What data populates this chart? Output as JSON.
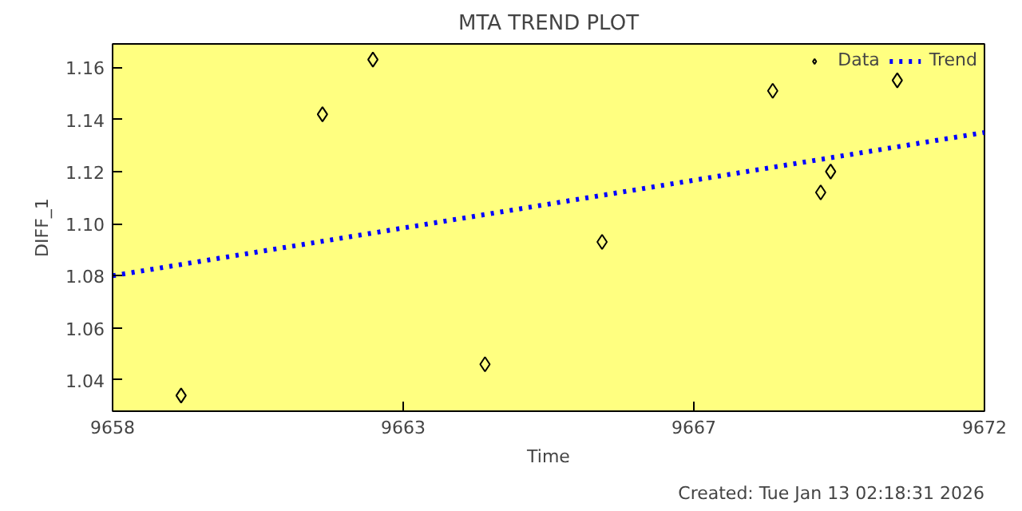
{
  "chart_data": {
    "type": "scatter",
    "title": "MTA TREND PLOT",
    "xlabel": "Time",
    "ylabel": "DIFF_1",
    "annotations": [
      "Created: Tue Jan 13 02:18:31 2026"
    ],
    "series": [
      {
        "name": "Data",
        "color": "#000000",
        "marker": "diamond",
        "x": [
          9659.1,
          9661.37,
          9662.18,
          9663.98,
          9665.86,
          9668.6,
          9669.37,
          9669.53,
          9670.6
        ],
        "values": [
          1.034,
          1.142,
          1.163,
          1.046,
          1.093,
          1.151,
          1.112,
          1.12,
          1.155
        ]
      },
      {
        "name": "Trend",
        "type": "line",
        "color": "#0000ff",
        "line_style": "dotted",
        "x": [
          9658,
          9672
        ],
        "values": [
          1.08,
          1.135
        ]
      }
    ],
    "xlim": [
      9658,
      9672
    ],
    "ylim": [
      1.028,
      1.169
    ],
    "xticks": [
      9658,
      {
        "value": 9662.667,
        "label": "9663"
      },
      {
        "value": 9667.333,
        "label": "9667"
      },
      9672
    ],
    "yticks": [
      {
        "value": 1.04,
        "label": "1.04"
      },
      {
        "value": 1.06,
        "label": "1.06"
      },
      {
        "value": 1.08,
        "label": "1.08"
      },
      {
        "value": 1.1,
        "label": "1.10"
      },
      {
        "value": 1.12,
        "label": "1.12"
      },
      {
        "value": 1.14,
        "label": "1.14"
      },
      {
        "value": 1.16,
        "label": "1.16"
      }
    ],
    "grid": false,
    "legend": "top right"
  }
}
